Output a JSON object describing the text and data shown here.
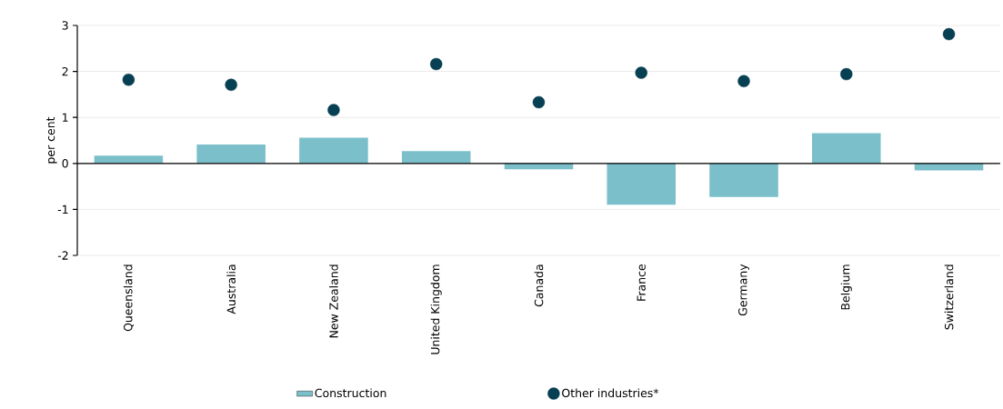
{
  "chart_data": {
    "type": "bar",
    "ylabel": "per cent",
    "categories": [
      "Queensland",
      "Australia",
      "New Zealand",
      "United Kingdom",
      "Canada",
      "France",
      "Germany",
      "Belgium",
      "Switzerland"
    ],
    "series": [
      {
        "name": "Construction",
        "color": "#7bbfca",
        "values": [
          0.17,
          0.41,
          0.56,
          0.27,
          -0.13,
          -0.9,
          -0.73,
          0.66,
          -0.15
        ]
      },
      {
        "name": "Other industries*",
        "type": "scatter",
        "color": "#073f53",
        "values": [
          1.82,
          1.71,
          1.16,
          2.16,
          1.33,
          1.97,
          1.79,
          1.94,
          2.81
        ]
      }
    ],
    "ylim": [
      -2,
      3
    ],
    "yticks": [
      -2,
      -1,
      0,
      1,
      2,
      3
    ],
    "grid": "y",
    "legend": "bottom"
  }
}
